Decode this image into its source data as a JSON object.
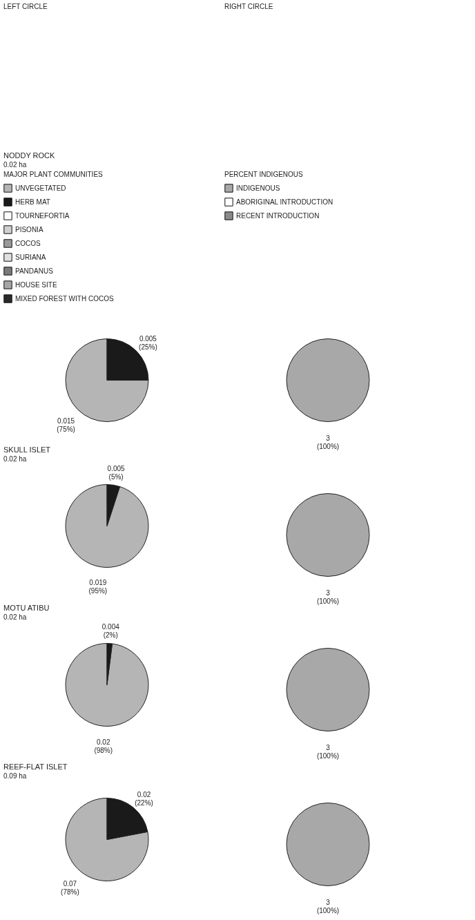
{
  "chart_data": [
    {
      "type": "pie",
      "title": "NODDY ROCK",
      "subtitle": "0.02 ha",
      "annotations": [
        "LEFT CIRCLE"
      ],
      "legend": "top",
      "legend_title": "MAJOR PLANT COMMUNITIES",
      "categories": [
        "UNVEGETATED",
        "HERB MAT",
        "TOURNEFORTIA",
        "PISONIA",
        "COCOS",
        "SURIANA",
        "PANDANUS",
        "HOUSE SITE",
        "MIXED FOREST WITH COCOS"
      ],
      "values": [
        75,
        25,
        null,
        null,
        null,
        null,
        null,
        null,
        null
      ],
      "value_labels": [
        "0.015 (75%)",
        "0.005 (25%)",
        null,
        null,
        null,
        null,
        null,
        null,
        null
      ],
      "colors": [
        "#b5b5b5",
        "#1a1a1a",
        "#ffffff",
        "#d0d0d0",
        "#9a9a9a",
        "#e0e0e0",
        "#7a7a7a",
        "#a5a5a5",
        "#2a2a2a"
      ]
    },
    {
      "type": "pie",
      "annotations": [
        "RIGHT CIRCLE"
      ],
      "legend": "top",
      "legend_title": "PERCENT INDIGENOUS",
      "categories": [
        "INDIGENOUS",
        "ABORIGINAL INTRODUCTION",
        "RECENT INTRODUCTION"
      ],
      "values": [
        100,
        null,
        null
      ],
      "value_labels": [
        "3 (100%)",
        null,
        null
      ],
      "colors": [
        "#a8a8a8",
        "#ffffff",
        "#8a8a8a"
      ]
    },
    {
      "type": "pie",
      "title": "SKULL ISLET",
      "subtitle": "0.02 ha",
      "categories": [
        null,
        null
      ],
      "values": [
        95,
        5
      ],
      "value_labels": [
        "0.019 (95%)",
        "0.005 (5%)"
      ],
      "colors": [
        "#b5b5b5",
        "#1a1a1a"
      ]
    },
    {
      "type": "pie",
      "categories": [
        null
      ],
      "values": [
        100
      ],
      "value_labels": [
        "3 (100%)"
      ],
      "colors": [
        "#a8a8a8"
      ]
    },
    {
      "type": "pie",
      "title": "MOTU ATIBU",
      "subtitle": "0.02 ha",
      "categories": [
        null,
        null
      ],
      "values": [
        98,
        2
      ],
      "value_labels": [
        "0.02 (98%)",
        "0.004 (2%)"
      ],
      "colors": [
        "#b5b5b5",
        "#1a1a1a"
      ]
    },
    {
      "type": "pie",
      "categories": [
        null
      ],
      "values": [
        100
      ],
      "value_labels": [
        "3 (100%)"
      ],
      "colors": [
        "#a8a8a8"
      ]
    },
    {
      "type": "pie",
      "title": "REEF-FLAT ISLET",
      "subtitle": "0.09 ha",
      "categories": [
        null,
        null
      ],
      "values": [
        78,
        22
      ],
      "value_labels": [
        "0.07 (78%)",
        "0.02 (22%)"
      ],
      "colors": [
        "#b5b5b5",
        "#1a1a1a"
      ]
    },
    {
      "type": "pie",
      "categories": [
        null
      ],
      "values": [
        100
      ],
      "value_labels": [
        "3 (100%)"
      ],
      "colors": [
        "#a8a8a8"
      ]
    }
  ]
}
